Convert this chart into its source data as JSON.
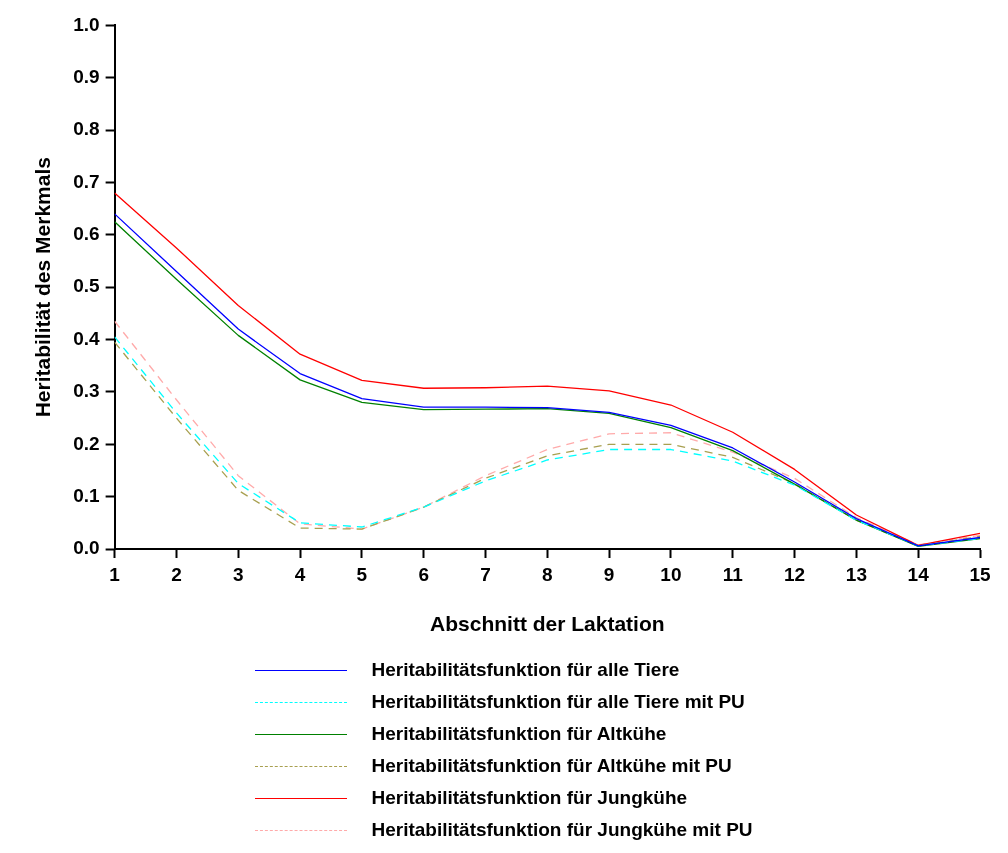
{
  "chart_data": {
    "type": "line",
    "xlabel": "Abschnitt der Laktation",
    "ylabel": "Heritabilität des Merkmals",
    "x": [
      1,
      2,
      3,
      4,
      5,
      6,
      7,
      8,
      9,
      10,
      11,
      12,
      13,
      14,
      15
    ],
    "xlim": [
      1,
      15
    ],
    "xticks": [
      1,
      2,
      3,
      4,
      5,
      6,
      7,
      8,
      9,
      10,
      11,
      12,
      13,
      14,
      15
    ],
    "ylim": [
      0,
      1
    ],
    "yticks": [
      {
        "value": 0,
        "label": "0.0"
      },
      0.1,
      0.2,
      0.3,
      0.4,
      0.5,
      0.6,
      0.7,
      0.8,
      0.9,
      {
        "value": 1,
        "label": "1.0"
      }
    ],
    "grid": false,
    "legend": "bottom",
    "marker": "none",
    "series": [
      {
        "name": "Heritabilitätsfunktion für alle Tiere",
        "color": "#0000ff",
        "line_style": "solid",
        "values": [
          0.64,
          0.53,
          0.42,
          0.335,
          0.287,
          0.271,
          0.271,
          0.27,
          0.261,
          0.236,
          0.193,
          0.128,
          0.058,
          0.006,
          0.022
        ]
      },
      {
        "name": "Heritabilitätsfunktion für alle Tiere mit PU",
        "color": "#00ffff",
        "line_style": "dashed",
        "values": [
          0.405,
          0.26,
          0.125,
          0.05,
          0.042,
          0.08,
          0.13,
          0.17,
          0.19,
          0.19,
          0.168,
          0.122,
          0.055,
          0.006,
          0.02
        ]
      },
      {
        "name": "Heritabilitätsfunktion für Altkühe",
        "color": "#008000",
        "line_style": "solid",
        "values": [
          0.625,
          0.515,
          0.408,
          0.323,
          0.28,
          0.266,
          0.267,
          0.268,
          0.259,
          0.232,
          0.188,
          0.124,
          0.055,
          0.005,
          0.02
        ]
      },
      {
        "name": "Heritabilitätsfunktion für Altkühe mit PU",
        "color": "#a8a050",
        "line_style": "dashed",
        "values": [
          0.395,
          0.25,
          0.112,
          0.04,
          0.038,
          0.08,
          0.135,
          0.178,
          0.2,
          0.2,
          0.175,
          0.125,
          0.055,
          0.006,
          0.024
        ]
      },
      {
        "name": "Heritabilitätsfunktion für Jungkühe",
        "color": "#ff0000",
        "line_style": "solid",
        "values": [
          0.68,
          0.575,
          0.465,
          0.372,
          0.322,
          0.307,
          0.308,
          0.311,
          0.302,
          0.275,
          0.223,
          0.152,
          0.065,
          0.007,
          0.03
        ]
      },
      {
        "name": "Heritabilitätsfunktion für Jungkühe mit PU",
        "color": "#ffaaaa",
        "line_style": "dashed",
        "values": [
          0.435,
          0.285,
          0.14,
          0.048,
          0.038,
          0.08,
          0.14,
          0.19,
          0.22,
          0.222,
          0.185,
          0.135,
          0.06,
          0.008,
          0.026
        ]
      }
    ]
  }
}
